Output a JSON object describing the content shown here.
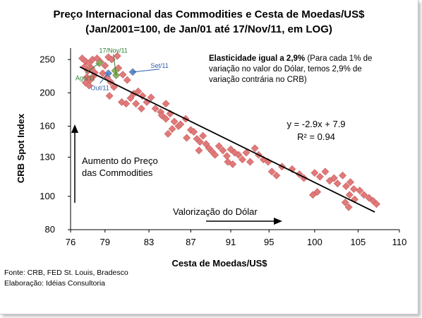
{
  "chart_data": {
    "type": "scatter",
    "title": [
      "Preço Internacional das Commodities e Cesta de Moedas/US$",
      "(Jan/2001=100, de Jan/01 até 17/Nov/11, em LOG)"
    ],
    "xlabel": "Cesta de Moedas/US$",
    "ylabel": "CRB Spot Index",
    "x_ticks": [
      "76",
      "79",
      "83",
      "87",
      "91",
      "95",
      "100",
      "105",
      "110"
    ],
    "y_ticks": [
      "80",
      "100",
      "130",
      "160",
      "200",
      "250"
    ],
    "xlim": [
      76,
      110
    ],
    "ylim": [
      80,
      270
    ],
    "x_scale": "log",
    "y_scale": "log",
    "grid": false,
    "series": [
      {
        "points": [
          [
            77.0,
            252
          ],
          [
            77.3,
            247
          ],
          [
            77.6,
            244
          ],
          [
            77.9,
            250
          ],
          [
            77.2,
            238
          ],
          [
            77.5,
            232
          ],
          [
            77.8,
            236
          ],
          [
            78.1,
            229
          ],
          [
            77.4,
            222
          ],
          [
            77.7,
            218
          ],
          [
            78.0,
            224
          ],
          [
            77.3,
            214
          ],
          [
            77.6,
            210
          ],
          [
            78.3,
            252
          ],
          [
            78.6,
            246
          ],
          [
            79.0,
            240
          ],
          [
            79.3,
            254
          ],
          [
            79.6,
            250
          ],
          [
            80.1,
            256
          ],
          [
            78.8,
            228
          ],
          [
            79.2,
            222
          ],
          [
            79.5,
            215
          ],
          [
            79.8,
            208
          ],
          [
            79.4,
            196
          ],
          [
            80.2,
            236
          ],
          [
            80.6,
            226
          ],
          [
            81.0,
            218
          ],
          [
            80.5,
            188
          ],
          [
            80.9,
            186
          ],
          [
            81.3,
            193
          ],
          [
            81.6,
            199
          ],
          [
            82.0,
            202
          ],
          [
            82.4,
            196
          ],
          [
            81.8,
            186
          ],
          [
            82.3,
            180
          ],
          [
            82.8,
            188
          ],
          [
            83.2,
            194
          ],
          [
            83.6,
            180
          ],
          [
            84.1,
            176
          ],
          [
            84.6,
            186
          ],
          [
            84.2,
            172
          ],
          [
            84.6,
            168
          ],
          [
            85.0,
            174
          ],
          [
            85.4,
            165
          ],
          [
            85.8,
            160
          ],
          [
            85.2,
            157
          ],
          [
            84.8,
            152
          ],
          [
            86.0,
            162
          ],
          [
            86.5,
            168
          ],
          [
            87.0,
            156
          ],
          [
            86.6,
            148
          ],
          [
            87.3,
            154
          ],
          [
            87.6,
            147
          ],
          [
            87.9,
            144
          ],
          [
            88.2,
            150
          ],
          [
            88.5,
            142
          ],
          [
            87.8,
            136
          ],
          [
            88.8,
            138
          ],
          [
            89.1,
            135
          ],
          [
            89.4,
            132
          ],
          [
            89.8,
            140
          ],
          [
            90.2,
            136
          ],
          [
            90.6,
            131
          ],
          [
            91.0,
            137
          ],
          [
            91.4,
            134
          ],
          [
            90.7,
            126
          ],
          [
            91.2,
            124
          ],
          [
            91.8,
            132
          ],
          [
            92.2,
            128
          ],
          [
            92.6,
            134
          ],
          [
            93.0,
            126
          ],
          [
            93.5,
            138
          ],
          [
            93.9,
            132
          ],
          [
            94.4,
            128
          ],
          [
            94.9,
            126
          ],
          [
            95.3,
            118
          ],
          [
            95.8,
            115
          ],
          [
            96.4,
            122
          ],
          [
            97.5,
            120
          ],
          [
            98.3,
            116
          ],
          [
            98.8,
            113
          ],
          [
            100.0,
            117
          ],
          [
            100.6,
            114
          ],
          [
            101.2,
            118
          ],
          [
            101.7,
            111
          ],
          [
            102.2,
            113
          ],
          [
            102.6,
            109
          ],
          [
            103.2,
            115
          ],
          [
            103.6,
            107
          ],
          [
            104.1,
            110
          ],
          [
            104.5,
            105
          ],
          [
            104.0,
            101
          ],
          [
            103.5,
            96
          ],
          [
            103.9,
            93
          ],
          [
            104.6,
            98
          ],
          [
            100.3,
            103
          ],
          [
            99.8,
            101
          ],
          [
            105.2,
            104
          ],
          [
            105.7,
            101
          ],
          [
            106.3,
            99
          ],
          [
            106.8,
            97
          ],
          [
            107.2,
            95
          ]
        ],
        "color": "#e07a7a"
      },
      {
        "name": "Ago/11",
        "points": [
          [
            78.5,
            244
          ],
          [
            80.0,
            225
          ],
          [
            79.9,
            232
          ]
        ],
        "color": "#8fb552"
      },
      {
        "name": "Set/11",
        "points": [
          [
            81.5,
            230
          ]
        ],
        "color": "#5b8fd6"
      },
      {
        "name": "Out/11",
        "points": [
          [
            79.3,
            228
          ]
        ],
        "color": "#5b8fd6"
      }
    ],
    "trendline": {
      "equation": "y = -2.9x + 7.9",
      "r2": "R² = 0.94",
      "from": [
        76.8,
        238
      ],
      "to": [
        107.0,
        90
      ]
    },
    "callouts": [
      {
        "label": "17/Nov/11",
        "color": "#2e7d32",
        "at": [
          80.0,
          225
        ]
      },
      {
        "label": "Set/11",
        "color": "#2e5fa8",
        "at": [
          81.5,
          230
        ]
      },
      {
        "label": "Ago/11",
        "color": "#2e7d32",
        "at": [
          78.5,
          244
        ]
      },
      {
        "label": "Out/11",
        "color": "#2e5fa8",
        "at": [
          79.3,
          228
        ]
      }
    ],
    "annotations": {
      "elasticity_bold": "Elasticidade igual a 2,9%",
      "elasticity_lines": [
        " (Para cada 1% de",
        "variação no valor do Dólar, temos 2,9% de",
        "variação contrária no CRB)"
      ],
      "up_label": [
        "Aumento do Preço",
        "das Commodities"
      ],
      "right_label": "Valorização do Dólar"
    }
  },
  "footer": {
    "source": "Fonte: CRB, FED St. Louis, Bradesco",
    "author": "Elaboração: Idéias Consultoria"
  },
  "colors": {
    "frame_border": "#c8c8c8",
    "axis": "#000000"
  }
}
